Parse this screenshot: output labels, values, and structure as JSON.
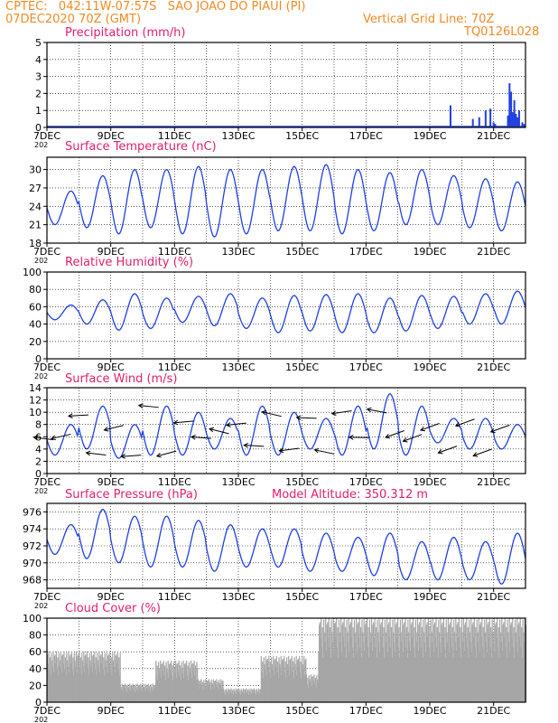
{
  "header": {
    "line1": "CPTEC:   042:11W-07:57S   SAO JOAO DO PIAUI (PI)",
    "line2_left": "07DEC2020 70Z (GMT)",
    "line2_right": "Vertical Grid Line: 70Z",
    "line3_right": "TQ0126L028",
    "color": "#f08a24"
  },
  "title_color": "#e0206e",
  "series_color": "#2040e0",
  "grid_color": "#000000",
  "x_ticks": [
    "7DEC",
    "9DEC",
    "11DEC",
    "13DEC",
    "15DEC",
    "17DEC",
    "19DEC",
    "21DEC"
  ],
  "x_tick_days": [
    0,
    2,
    4,
    6,
    8,
    10,
    12,
    14
  ],
  "x_range_days": [
    0,
    15
  ],
  "year_fragment": "202",
  "extra_label": "Model Altitude: 350.312 m",
  "chart_data": [
    {
      "type": "bar",
      "title": "Precipitation (mm/h)",
      "ylim": [
        0,
        5
      ],
      "yticks": [
        "0",
        "1",
        "2",
        "3",
        "4",
        "5"
      ],
      "grid": true,
      "x_days": [
        12.65,
        13.35,
        13.55,
        13.75,
        13.9,
        14.0,
        14.05,
        14.45,
        14.5,
        14.55,
        14.6,
        14.65,
        14.7,
        14.75,
        14.8,
        14.9,
        14.95
      ],
      "values": [
        1.3,
        0.5,
        0.6,
        1.0,
        1.1,
        0.3,
        0.2,
        0.7,
        2.6,
        2.1,
        0.9,
        1.6,
        0.8,
        0.6,
        1.0,
        0.3,
        0.2
      ]
    },
    {
      "type": "line",
      "title": "Surface Temperature (nC)",
      "ylim": [
        18,
        32
      ],
      "yticks": [
        "18",
        "21",
        "24",
        "27",
        "30"
      ],
      "grid": true,
      "hi": [
        26.5,
        29.0,
        30.0,
        30.0,
        30.5,
        30.0,
        30.0,
        30.5,
        30.8,
        30.0,
        29.5,
        30.0,
        29.0,
        28.5,
        28.0,
        27.0
      ],
      "lo": [
        21.0,
        20.5,
        19.5,
        20.5,
        19.5,
        19.0,
        19.5,
        20.0,
        20.0,
        19.5,
        20.0,
        21.0,
        21.0,
        20.5,
        20.0,
        21.0
      ]
    },
    {
      "type": "line",
      "title": "Relative Humidity (%)",
      "ylim": [
        0,
        100
      ],
      "yticks": [
        "0",
        "20",
        "40",
        "60",
        "80",
        "100"
      ],
      "grid": true,
      "hi": [
        62,
        68,
        75,
        70,
        72,
        75,
        70,
        73,
        74,
        75,
        70,
        73,
        72,
        75,
        78,
        90,
        86,
        75
      ],
      "lo": [
        45,
        40,
        33,
        35,
        42,
        38,
        35,
        30,
        32,
        30,
        30,
        32,
        35,
        40,
        40,
        42,
        38,
        45
      ]
    },
    {
      "type": "line",
      "title": "Surface Wind (m/s)",
      "ylim": [
        0,
        14
      ],
      "yticks": [
        "0",
        "2",
        "4",
        "6",
        "8",
        "10",
        "12",
        "14"
      ],
      "grid": true,
      "hi": [
        8,
        11,
        8,
        11,
        10,
        9,
        11,
        10,
        9,
        11,
        13,
        11,
        9,
        9,
        8,
        8
      ],
      "lo": [
        3,
        4,
        2.5,
        3,
        3,
        4,
        3,
        3,
        4,
        3,
        4,
        3,
        5,
        4,
        4,
        4
      ]
    },
    {
      "type": "line",
      "title": "Surface Pressure (hPa)",
      "ylim": [
        967,
        977
      ],
      "yticks": [
        "968",
        "970",
        "972",
        "974",
        "976"
      ],
      "grid": true,
      "hi": [
        974.5,
        976.3,
        975.5,
        975.5,
        975.0,
        974.5,
        974.0,
        974.0,
        973.5,
        973.0,
        973.5,
        972.5,
        973.0,
        972.5,
        973.5,
        970.5
      ],
      "lo": [
        971.0,
        970.5,
        970.0,
        969.5,
        969.5,
        969.0,
        969.5,
        969.5,
        969.0,
        969.0,
        968.5,
        968.0,
        968.0,
        968.0,
        967.5,
        968.0
      ]
    },
    {
      "type": "bar",
      "title": "Cloud Cover (%)",
      "ylim": [
        0,
        100
      ],
      "yticks": [
        "0",
        "20",
        "40",
        "60",
        "80",
        "100"
      ],
      "grid": true,
      "segments": [
        {
          "from": 0.0,
          "to": 2.3,
          "level": 55
        },
        {
          "from": 2.3,
          "to": 3.4,
          "level": 20
        },
        {
          "from": 3.4,
          "to": 4.7,
          "level": 45
        },
        {
          "from": 4.7,
          "to": 5.5,
          "level": 25
        },
        {
          "from": 5.5,
          "to": 6.7,
          "level": 15
        },
        {
          "from": 6.7,
          "to": 8.1,
          "level": 50
        },
        {
          "from": 8.1,
          "to": 8.5,
          "level": 30
        },
        {
          "from": 8.5,
          "to": 15.0,
          "level": 92
        }
      ]
    }
  ]
}
